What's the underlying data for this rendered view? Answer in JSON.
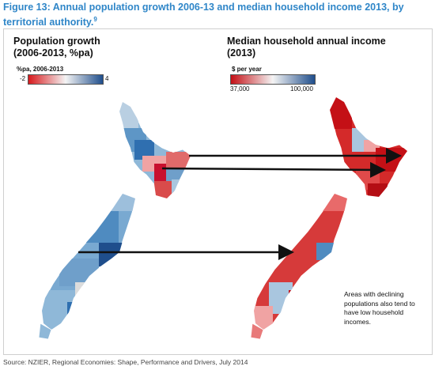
{
  "caption": {
    "text": "Figure 13:  Annual population growth 2006-13 and median household income 2013, by territorial authority.",
    "footnote_mark": "9"
  },
  "left_panel": {
    "title_line1": "Population growth",
    "title_line2": "(2006-2013, %pa)",
    "legend": {
      "title": "%pa, 2006-2013",
      "min_label": "-2",
      "max_label": "4",
      "colors": {
        "low": "#d7191c",
        "mid": "#f4f4f4",
        "high": "#1f4e8c"
      }
    }
  },
  "right_panel": {
    "title_line1": "Median household annual income",
    "title_line2": "(2013)",
    "legend": {
      "title": "$ per year",
      "min_label": "37,000",
      "max_label": "100,000",
      "colors": {
        "low": "#c41016",
        "mid": "#f4f4f4",
        "high": "#1f4e8c"
      }
    }
  },
  "note": "Areas with declining populations also tend to have low household incomes.",
  "source": "Source: NZIER, Regional Economies: Shape, Performance and Drivers, July 2014"
}
